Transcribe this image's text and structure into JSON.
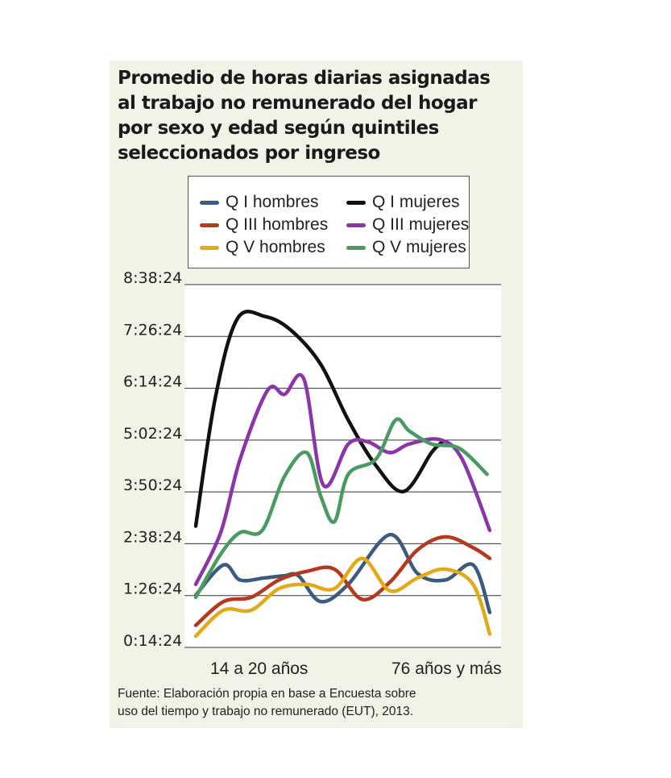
{
  "title_lines": [
    "Promedio de horas diarias asignadas",
    "al trabajo no remunerado del hogar",
    "por sexo y edad según quintiles",
    "seleccionados por ingreso"
  ],
  "source_lines": [
    "Fuente: Elaboración propia en base a Encuesta sobre",
    " uso del tiempo y trabajo no remunerado (EUT), 2013."
  ],
  "x_labels": {
    "left": "14 a 20 años",
    "right": "76 años y más"
  },
  "chart_data": {
    "type": "line",
    "y_tick_labels": [
      "8:38:24",
      "7:26:24",
      "6:14:24",
      "5:02:24",
      "3:50:24",
      "2:38:24",
      "1:26:24",
      "0:14:24"
    ],
    "y_tick_hours": [
      8.64,
      7.44,
      6.24,
      5.04,
      3.84,
      2.64,
      1.44,
      0.24
    ],
    "ylim_hours": [
      0.24,
      8.64
    ],
    "xlim": [
      0,
      13
    ],
    "grid": true,
    "legend_placement": "top",
    "series": [
      {
        "name": "Q I hombres",
        "color": "#3d5a80",
        "points": [
          [
            0,
            1.45
          ],
          [
            1,
            2.15
          ],
          [
            1.6,
            1.8
          ],
          [
            2.5,
            1.85
          ],
          [
            3.2,
            1.9
          ],
          [
            3.7,
            1.9
          ],
          [
            4.5,
            1.3
          ],
          [
            5.5,
            1.7
          ],
          [
            7,
            2.85
          ],
          [
            8,
            1.95
          ],
          [
            9,
            1.8
          ],
          [
            10,
            2.15
          ],
          [
            10.6,
            1.05
          ]
        ]
      },
      {
        "name": "Q III hombres",
        "color": "#b23a1e",
        "points": [
          [
            0,
            0.75
          ],
          [
            1,
            1.3
          ],
          [
            2,
            1.4
          ],
          [
            3,
            1.8
          ],
          [
            4,
            2.0
          ],
          [
            5,
            2.05
          ],
          [
            6,
            1.35
          ],
          [
            7,
            1.75
          ],
          [
            8,
            2.5
          ],
          [
            9,
            2.8
          ],
          [
            10,
            2.55
          ],
          [
            10.6,
            2.3
          ]
        ]
      },
      {
        "name": "Q V hombres",
        "color": "#e2aa1b",
        "points": [
          [
            0,
            0.5
          ],
          [
            1,
            1.1
          ],
          [
            2,
            1.1
          ],
          [
            3,
            1.6
          ],
          [
            4,
            1.7
          ],
          [
            5,
            1.6
          ],
          [
            6,
            2.3
          ],
          [
            7,
            1.55
          ],
          [
            8,
            1.85
          ],
          [
            9,
            2.05
          ],
          [
            10,
            1.7
          ],
          [
            10.6,
            0.55
          ]
        ]
      },
      {
        "name": "Q I mujeres",
        "color": "#111111",
        "points": [
          [
            0,
            3.05
          ],
          [
            0.7,
            6.0
          ],
          [
            1.5,
            7.85
          ],
          [
            2.5,
            7.9
          ],
          [
            3.4,
            7.6
          ],
          [
            4.5,
            6.8
          ],
          [
            5.5,
            5.5
          ],
          [
            6.5,
            4.45
          ],
          [
            7.5,
            3.85
          ],
          [
            8.5,
            4.75
          ],
          [
            8.9,
            5.0
          ]
        ]
      },
      {
        "name": "Q III mujeres",
        "color": "#8a35a8",
        "points": [
          [
            0,
            1.7
          ],
          [
            0.9,
            2.9
          ],
          [
            1.6,
            4.6
          ],
          [
            2.6,
            6.2
          ],
          [
            3.2,
            6.1
          ],
          [
            3.9,
            6.45
          ],
          [
            4.6,
            4.0
          ],
          [
            5.5,
            4.95
          ],
          [
            6.2,
            5.0
          ],
          [
            7,
            4.75
          ],
          [
            7.7,
            4.95
          ],
          [
            8.8,
            5.05
          ],
          [
            9.6,
            4.6
          ],
          [
            10.6,
            2.95
          ]
        ]
      },
      {
        "name": "Q V mujeres",
        "color": "#4a9a62",
        "points": [
          [
            0,
            1.4
          ],
          [
            0.9,
            2.4
          ],
          [
            1.6,
            2.9
          ],
          [
            2.4,
            2.95
          ],
          [
            3.2,
            4.2
          ],
          [
            4.0,
            4.75
          ],
          [
            4.5,
            3.75
          ],
          [
            5.0,
            3.15
          ],
          [
            5.5,
            4.25
          ],
          [
            6.5,
            4.6
          ],
          [
            7.2,
            5.5
          ],
          [
            7.7,
            5.25
          ],
          [
            8.5,
            4.95
          ],
          [
            9.5,
            4.85
          ],
          [
            10.5,
            4.25
          ]
        ]
      }
    ]
  }
}
